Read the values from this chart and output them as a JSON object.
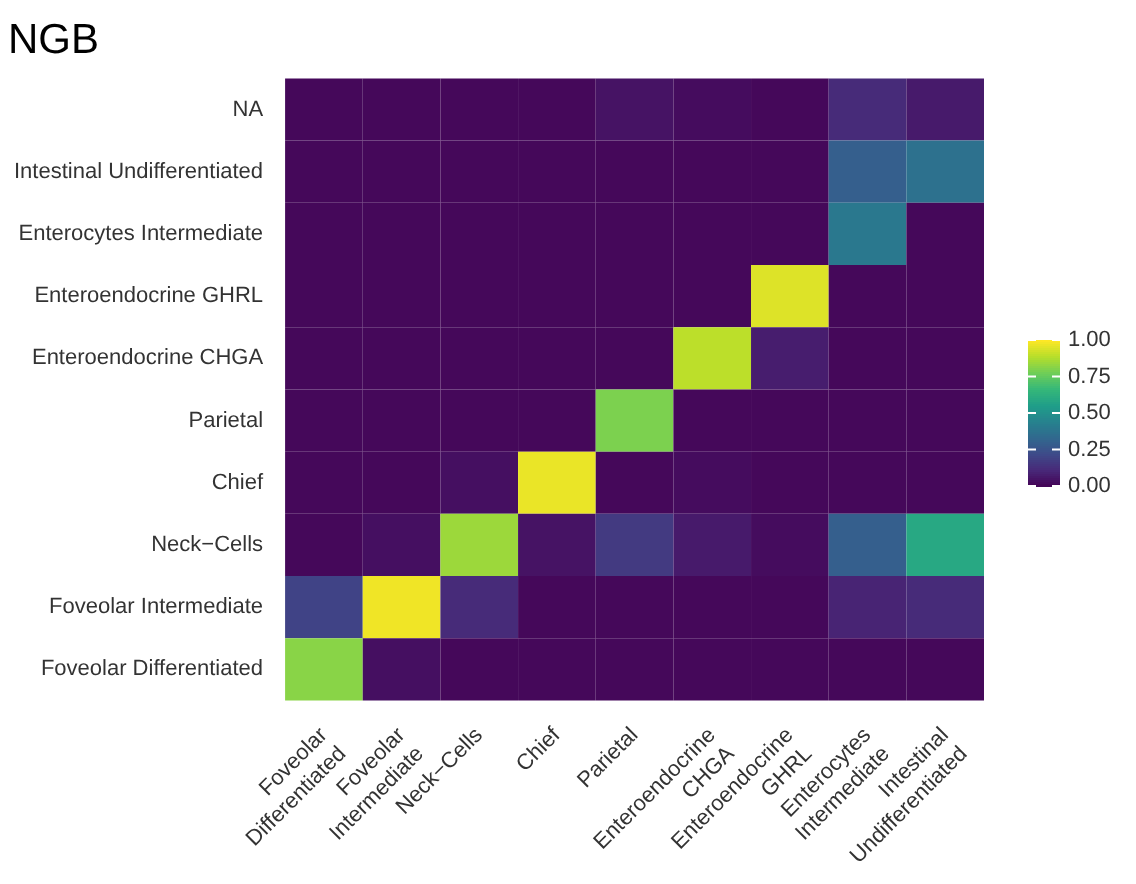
{
  "chart_data": {
    "type": "heatmap",
    "title": "NGB",
    "categories": [
      "Foveolar\nDifferentiated",
      "Foveolar\nIntermediate",
      "Neck−Cells",
      "Chief",
      "Parietal",
      "Enteroendocrine\nCHGA",
      "Enteroendocrine\nGHRL",
      "Enterocytes\nIntermediate",
      "Intestinal\nUndifferentiated"
    ],
    "y_categories": [
      "NA",
      "Intestinal Undifferentiated",
      "Enterocytes Intermediate",
      "Enteroendocrine GHRL",
      "Enteroendocrine CHGA",
      "Parietal",
      "Chief",
      "Neck−Cells",
      "Foveolar Intermediate",
      "Foveolar Differentiated"
    ],
    "cells": [
      [
        0.02,
        0.02,
        0.02,
        0.02,
        0.05,
        0.03,
        0.02,
        0.12,
        0.07
      ],
      [
        0.02,
        0.02,
        0.02,
        0.02,
        0.02,
        0.02,
        0.02,
        0.3,
        0.37
      ],
      [
        0.02,
        0.02,
        0.02,
        0.02,
        0.02,
        0.02,
        0.02,
        0.4,
        0.02
      ],
      [
        0.02,
        0.02,
        0.02,
        0.02,
        0.02,
        0.02,
        0.95,
        0.02,
        0.02
      ],
      [
        0.02,
        0.02,
        0.02,
        0.02,
        0.02,
        0.9,
        0.08,
        0.02,
        0.02
      ],
      [
        0.02,
        0.02,
        0.02,
        0.02,
        0.8,
        0.02,
        0.02,
        0.02,
        0.02
      ],
      [
        0.02,
        0.02,
        0.04,
        0.97,
        0.02,
        0.03,
        0.02,
        0.02,
        0.02
      ],
      [
        0.02,
        0.04,
        0.85,
        0.05,
        0.17,
        0.07,
        0.03,
        0.3,
        0.6
      ],
      [
        0.2,
        0.98,
        0.12,
        0.02,
        0.02,
        0.02,
        0.02,
        0.1,
        0.12
      ],
      [
        0.82,
        0.04,
        0.02,
        0.02,
        0.02,
        0.02,
        0.02,
        0.02,
        0.02
      ]
    ],
    "clim": [
      0,
      1
    ],
    "cticks": [
      {
        "value": 0,
        "label": "0.00"
      },
      {
        "value": 0.25,
        "label": "0.25"
      },
      {
        "value": 0.5,
        "label": "0.50"
      },
      {
        "value": 0.75,
        "label": "0.75"
      },
      {
        "value": 1,
        "label": "1.00"
      }
    ]
  }
}
